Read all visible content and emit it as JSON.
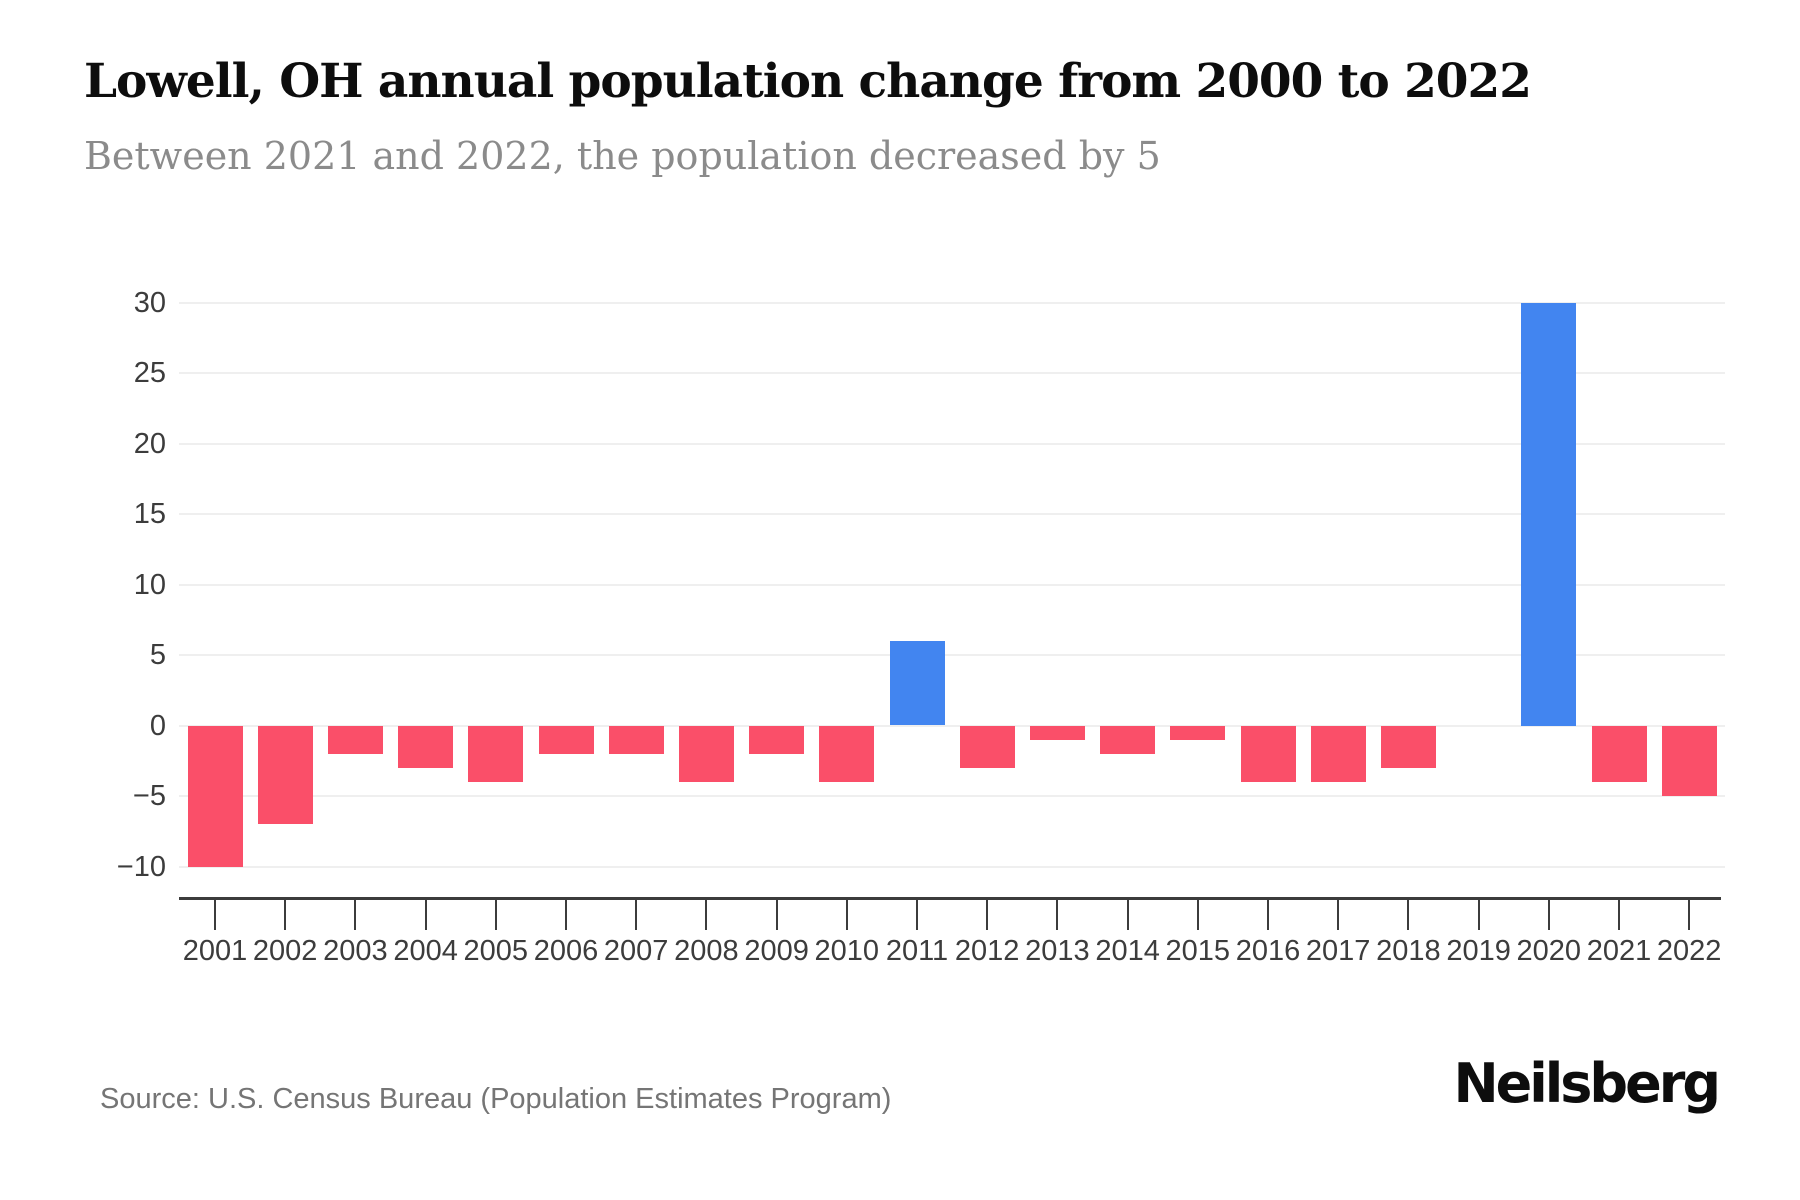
{
  "header": {
    "title": "Lowell, OH annual population change from 2000 to 2022",
    "subtitle": "Between 2021 and 2022, the population decreased by 5"
  },
  "chart_data": {
    "type": "bar",
    "title": "Lowell, OH annual population change from 2000 to 2022",
    "categories": [
      "2001",
      "2002",
      "2003",
      "2004",
      "2005",
      "2006",
      "2007",
      "2008",
      "2009",
      "2010",
      "2011",
      "2012",
      "2013",
      "2014",
      "2015",
      "2016",
      "2017",
      "2018",
      "2019",
      "2020",
      "2021",
      "2022"
    ],
    "values": [
      -10,
      -7,
      -2,
      -3,
      -4,
      -2,
      -2,
      -4,
      -2,
      -4,
      6,
      -3,
      -1,
      -2,
      -1,
      -4,
      -4,
      -3,
      0,
      30,
      -4,
      -5
    ],
    "xlabel": "",
    "ylabel": "",
    "ylim": [
      -10,
      30
    ],
    "yticks": [
      30,
      25,
      20,
      15,
      10,
      5,
      0,
      -5,
      -10
    ],
    "grid": "horizontal",
    "legend": "none",
    "colors": {
      "positive": "#4285F0",
      "negative": "#FA4F69",
      "gridline": "#EFEFEF",
      "axis": "#3C3C3C"
    }
  },
  "footer": {
    "source": "Source: U.S. Census Bureau (Population Estimates Program)",
    "brand": "Neilsberg"
  }
}
